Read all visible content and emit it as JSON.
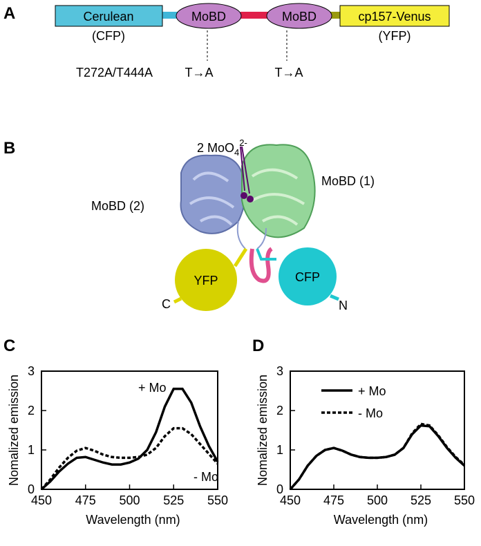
{
  "panel_a": {
    "label": "A",
    "segments": [
      "Cerulean",
      "MoBD",
      "MoBD",
      "cp157-Venus"
    ],
    "subtitles": [
      "(CFP)",
      "(YFP)"
    ],
    "mutations": [
      "T272A/T444A",
      "T→A",
      "T→A"
    ]
  },
  "panel_b": {
    "label": "B",
    "ligand": [
      "2 MoO",
      "4",
      "2-"
    ],
    "domains": [
      "MoBD (1)",
      "MoBD (2)"
    ],
    "fluorophores": [
      "YFP",
      "CFP"
    ],
    "termini": [
      "C",
      "N"
    ]
  },
  "chart_data": [
    {
      "type": "line",
      "panel_label": "C",
      "xlabel": "Wavelength (nm)",
      "ylabel": "Nomalized emission",
      "legend": false,
      "x": [
        450,
        455,
        460,
        465,
        470,
        475,
        480,
        485,
        490,
        495,
        500,
        505,
        510,
        515,
        520,
        525,
        530,
        535,
        540,
        545,
        550
      ],
      "series": [
        {
          "name": "+ Mo",
          "color": "#000000",
          "line_style": "solid",
          "values": [
            0,
            0.2,
            0.45,
            0.65,
            0.8,
            0.82,
            0.75,
            0.68,
            0.63,
            0.63,
            0.68,
            0.78,
            1.0,
            1.45,
            2.1,
            2.55,
            2.55,
            2.2,
            1.6,
            1.1,
            0.7
          ]
        },
        {
          "name": "- Mo",
          "color": "#000000",
          "line_style": "dashed",
          "values": [
            0,
            0.25,
            0.55,
            0.8,
            0.98,
            1.05,
            0.98,
            0.88,
            0.82,
            0.8,
            0.8,
            0.82,
            0.88,
            1.05,
            1.35,
            1.55,
            1.55,
            1.4,
            1.15,
            0.9,
            0.65
          ]
        }
      ],
      "xlim": [
        450,
        550
      ],
      "ylim": [
        0,
        3
      ],
      "xticks": [
        450,
        475,
        500,
        525,
        550
      ],
      "yticks": [
        0,
        1,
        2,
        3
      ]
    },
    {
      "type": "line",
      "panel_label": "D",
      "xlabel": "Wavelength (nm)",
      "ylabel": "Nomalized emission",
      "legend": true,
      "x": [
        450,
        455,
        460,
        465,
        470,
        475,
        480,
        485,
        490,
        495,
        500,
        505,
        510,
        515,
        520,
        525,
        530,
        535,
        540,
        545,
        550
      ],
      "series": [
        {
          "name": "+ Mo",
          "color": "#000000",
          "line_style": "solid",
          "values": [
            0,
            0.25,
            0.6,
            0.85,
            1.0,
            1.05,
            0.98,
            0.88,
            0.82,
            0.8,
            0.8,
            0.82,
            0.88,
            1.05,
            1.4,
            1.62,
            1.6,
            1.35,
            1.05,
            0.8,
            0.6
          ]
        },
        {
          "name": "- Mo",
          "color": "#000000",
          "line_style": "dashed",
          "values": [
            0,
            0.25,
            0.6,
            0.85,
            1.0,
            1.05,
            0.98,
            0.88,
            0.82,
            0.8,
            0.8,
            0.82,
            0.88,
            1.05,
            1.42,
            1.66,
            1.62,
            1.37,
            1.07,
            0.82,
            0.62
          ]
        }
      ],
      "xlim": [
        450,
        550
      ],
      "ylim": [
        0,
        3
      ],
      "xticks": [
        450,
        475,
        500,
        525,
        550
      ],
      "yticks": [
        0,
        1,
        2,
        3
      ]
    }
  ]
}
